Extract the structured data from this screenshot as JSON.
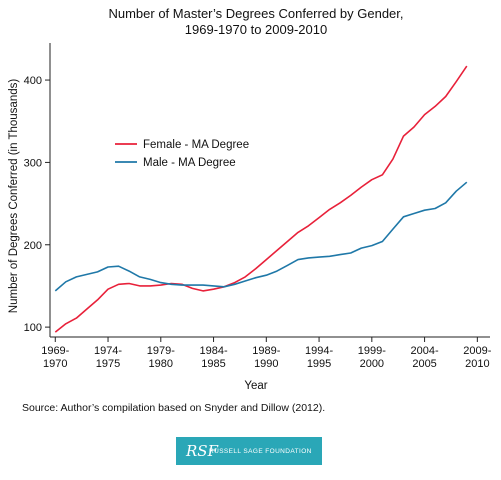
{
  "chart_data": {
    "type": "line",
    "title_lines": [
      "Number of Master’s Degrees Conferred by Gender,",
      "1969-1970 to 2009-2010"
    ],
    "xlabel": "Year",
    "ylabel": "Number of Degrees Conferred (in Thousands)",
    "x_ticks": [
      {
        "x": 1969,
        "lines": [
          "1969-",
          "1970"
        ]
      },
      {
        "x": 1974,
        "lines": [
          "1974-",
          "1975"
        ]
      },
      {
        "x": 1979,
        "lines": [
          "1979-",
          "1980"
        ]
      },
      {
        "x": 1984,
        "lines": [
          "1984-",
          "1985"
        ]
      },
      {
        "x": 1989,
        "lines": [
          "1989-",
          "1990"
        ]
      },
      {
        "x": 1994,
        "lines": [
          "1994-",
          "1995"
        ]
      },
      {
        "x": 1999,
        "lines": [
          "1999-",
          "2000"
        ]
      },
      {
        "x": 2004,
        "lines": [
          "2004-",
          "2005"
        ]
      },
      {
        "x": 2009,
        "lines": [
          "2009-",
          "2010"
        ]
      }
    ],
    "y_ticks": [
      100,
      200,
      300,
      400
    ],
    "xlim": [
      1968.5,
      2010.2
    ],
    "ylim": [
      88,
      445
    ],
    "x": [
      1969,
      1970,
      1971,
      1972,
      1973,
      1974,
      1975,
      1976,
      1977,
      1978,
      1979,
      1980,
      1981,
      1982,
      1983,
      1984,
      1985,
      1986,
      1987,
      1988,
      1989,
      1990,
      1991,
      1992,
      1993,
      1994,
      1995,
      1996,
      1997,
      1998,
      1999,
      2000,
      2001,
      2002,
      2003,
      2004,
      2005,
      2006,
      2007,
      2008
    ],
    "series": [
      {
        "name": "Female - MA Degree",
        "color": "#e8213a",
        "values": [
          94,
          104,
          111,
          122,
          133,
          146,
          152,
          153,
          150,
          150,
          151,
          153,
          152,
          147,
          144,
          146,
          149,
          154,
          161,
          171,
          182,
          193,
          204,
          215,
          223,
          233,
          243,
          251,
          260,
          270,
          279,
          285,
          304,
          332,
          343,
          358,
          368,
          380,
          398,
          417
        ]
      },
      {
        "name": "Male - MA Degree",
        "color": "#1f78a8",
        "values": [
          144,
          155,
          161,
          164,
          167,
          173,
          174,
          168,
          161,
          158,
          154,
          152,
          151,
          151,
          151,
          150,
          149,
          152,
          156,
          160,
          163,
          168,
          175,
          182,
          184,
          185,
          186,
          188,
          190,
          196,
          199,
          204,
          219,
          234,
          238,
          242,
          244,
          251,
          265,
          276
        ]
      }
    ],
    "legend_position": "upper-left",
    "grid": false
  },
  "source_text": "Source: Author’s compilation based on Snyder and Dillow (2012).",
  "logo": {
    "mark": "RSF",
    "text": "RUSSELL SAGE FOUNDATION",
    "color": "#2aa7b7"
  }
}
